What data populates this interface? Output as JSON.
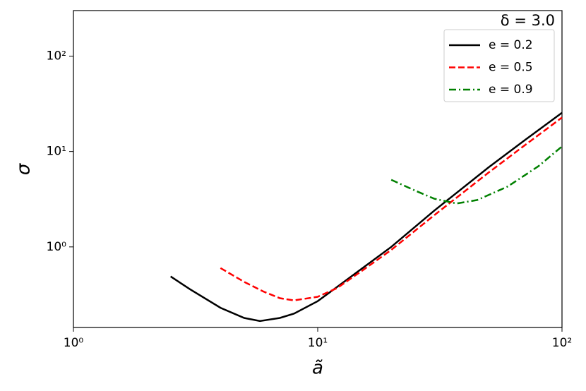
{
  "chart_data": {
    "type": "line",
    "x_label": "ã",
    "y_label": "σ",
    "annotation": "δ = 3.0",
    "xscale": "log",
    "yscale": "log",
    "xlim": [
      1,
      100
    ],
    "ylim": [
      0.143,
      300
    ],
    "xticks": [
      {
        "value": 1,
        "label": "10⁰"
      },
      {
        "value": 10,
        "label": "10¹"
      },
      {
        "value": 100,
        "label": "10²"
      }
    ],
    "yticks": [
      {
        "value": 1,
        "label": "10⁰"
      },
      {
        "value": 10,
        "label": "10¹"
      },
      {
        "value": 100,
        "label": "10²"
      }
    ],
    "legend": "upper right",
    "series": [
      {
        "name": "e = 0.2",
        "color": "#000000",
        "style": "solid",
        "x": [
          2.5,
          3,
          4,
          5,
          5.8,
          7,
          8,
          10,
          12,
          15,
          20,
          30,
          50,
          70,
          100
        ],
        "values": [
          0.49,
          0.36,
          0.23,
          0.18,
          0.167,
          0.18,
          0.2,
          0.27,
          0.38,
          0.58,
          1.0,
          2.4,
          6.8,
          13,
          25.5
        ]
      },
      {
        "name": "e = 0.5",
        "color": "#ff0000",
        "style": "dashed",
        "x": [
          4,
          5,
          6,
          7,
          8,
          10,
          12,
          15,
          20,
          30,
          50,
          70,
          100
        ],
        "values": [
          0.6,
          0.43,
          0.34,
          0.29,
          0.275,
          0.3,
          0.37,
          0.55,
          0.93,
          2.15,
          6.0,
          11.5,
          22.7
        ]
      },
      {
        "name": "e = 0.9",
        "color": "#008000",
        "style": "dashdot",
        "x": [
          20,
          25,
          30,
          37,
          45,
          60,
          80,
          100
        ],
        "values": [
          5.05,
          3.9,
          3.2,
          2.85,
          3.1,
          4.3,
          7,
          11.3
        ]
      }
    ]
  }
}
